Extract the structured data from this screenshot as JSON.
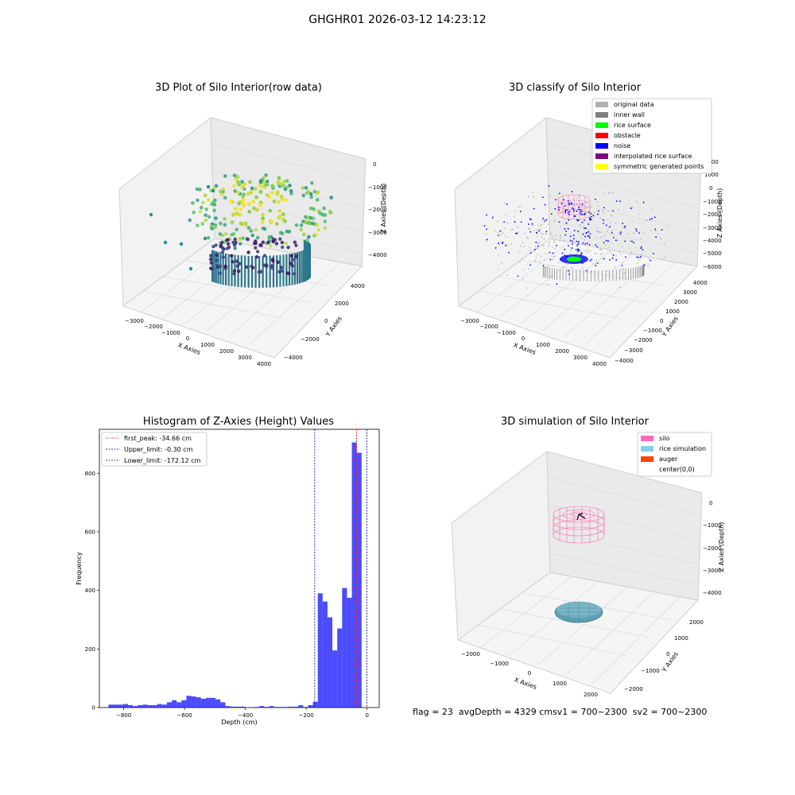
{
  "figure": {
    "suptitle": "GHGHR01 2026-03-12 14:23:12"
  },
  "panels": {
    "raw": {
      "title": "3D Plot of Silo Interior(row data)",
      "xlabel": "X Axies",
      "ylabel": "Y Axies",
      "zlabel": "Z Axies (Depth)",
      "xticks": [
        "−3000",
        "−2000",
        "−1000",
        "0",
        "1000",
        "2000",
        "3000",
        "4000"
      ],
      "yticks": [
        "4000",
        "2000",
        "0",
        "−2000",
        "−4000"
      ],
      "zticks": [
        "0",
        "−1000",
        "−2000",
        "−3000",
        "−4000"
      ]
    },
    "classify": {
      "title": "3D classify of Silo Interior",
      "xlabel": "X Axies",
      "ylabel": "Y Axies",
      "zlabel": "Z Axies (Depth)",
      "xticks": [
        "−3000",
        "−2000",
        "−1000",
        "0",
        "1000",
        "2000",
        "3000",
        "4000"
      ],
      "yticks": [
        "4000",
        "3000",
        "2000",
        "1000",
        "0",
        "−1000",
        "−2000",
        "−3000",
        "−4000"
      ],
      "zticks": [
        "2000",
        "1000",
        "0",
        "−1000",
        "−2000",
        "−3000",
        "−4000",
        "−5000",
        "−6000"
      ],
      "legend": [
        {
          "label": "original data",
          "color": "#b0b0b0"
        },
        {
          "label": "inner wall",
          "color": "#808080"
        },
        {
          "label": "rice surface",
          "color": "#00ff00"
        },
        {
          "label": "obstacle",
          "color": "#ff0000"
        },
        {
          "label": "noise",
          "color": "#0000ff"
        },
        {
          "label": "interpolated rice surface",
          "color": "#800080"
        },
        {
          "label": "symmetric generated points",
          "color": "#ffff00"
        }
      ]
    },
    "simulation": {
      "title": "3D simulation of Silo Interior",
      "xlabel": "X Axies",
      "ylabel": "Y Axies",
      "zlabel": "Z Axies (Depth)",
      "xticks": [
        "−2000",
        "−1000",
        "0",
        "1000",
        "2000"
      ],
      "yticks": [
        "2000",
        "1000",
        "0",
        "−1000",
        "−2000"
      ],
      "zticks": [
        "0",
        "−1000",
        "−2000",
        "−3000",
        "−4000"
      ],
      "legend": [
        {
          "label": "silo",
          "color": "#ff69b4"
        },
        {
          "label": "rice simulation",
          "color": "#87ceeb"
        },
        {
          "label": "auger",
          "color": "#ff4500"
        },
        {
          "label": "center(0,0)",
          "color": ""
        }
      ]
    }
  },
  "status_line": {
    "flag": "flag = 23",
    "avg_depth": "avgDepth = 4329 cm",
    "sv1": "sv1 = 700~2300",
    "sv2": "sv2 = 700~2300"
  },
  "chart_data": {
    "type": "bar",
    "title": "Histogram of Z-Axies (Height) Values",
    "xlabel": "Depth (cm)",
    "ylabel": "Frequency",
    "xlim": [
      -880,
      40
    ],
    "ylim": [
      0,
      950
    ],
    "xticks": [
      -800,
      -600,
      -400,
      -200,
      0
    ],
    "xtick_labels": [
      "−800",
      "−600",
      "−400",
      "−200",
      "0"
    ],
    "yticks": [
      0,
      200,
      400,
      600,
      800
    ],
    "bin_width": 16,
    "bin_starts": [
      -850,
      -834,
      -818,
      -802,
      -786,
      -770,
      -754,
      -738,
      -722,
      -706,
      -690,
      -674,
      -658,
      -642,
      -626,
      -610,
      -594,
      -578,
      -562,
      -546,
      -530,
      -514,
      -498,
      -482,
      -466,
      -450,
      -434,
      -418,
      -402,
      -386,
      -370,
      -354,
      -338,
      -322,
      -306,
      -290,
      -274,
      -258,
      -242,
      -226,
      -210,
      -194,
      -178,
      -162,
      -146,
      -130,
      -114,
      -98,
      -82,
      -66,
      -50,
      -34,
      -18
    ],
    "counts": [
      10,
      10,
      10,
      12,
      8,
      5,
      8,
      10,
      8,
      8,
      12,
      10,
      18,
      25,
      18,
      25,
      40,
      38,
      35,
      30,
      33,
      33,
      28,
      18,
      5,
      3,
      3,
      3,
      0,
      0,
      2,
      5,
      2,
      5,
      2,
      2,
      2,
      3,
      3,
      8,
      2,
      8,
      20,
      390,
      362,
      308,
      195,
      270,
      408,
      375,
      905,
      870,
      0
    ],
    "bar_color": "#0000ff",
    "reference_lines": [
      {
        "name": "first_peak: -34.66 cm",
        "x": -34.66,
        "color": "#ff0000"
      },
      {
        "name": "Upper_limit: -0.30 cm",
        "x": -0.3,
        "color": "#00008b"
      },
      {
        "name": "Lower_limit: -172.12 cm",
        "x": -172.12,
        "color": "#0000cd"
      }
    ],
    "legend_position": "upper-left"
  }
}
